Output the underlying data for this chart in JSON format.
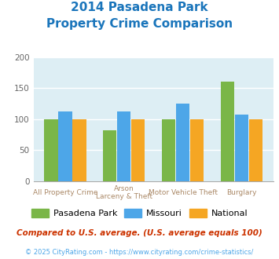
{
  "title_line1": "2014 Pasadena Park",
  "title_line2": "Property Crime Comparison",
  "title_color": "#1a75bb",
  "cat_labels_line1": [
    "All Property Crime",
    "Arson",
    "Motor Vehicle Theft",
    "Burglary"
  ],
  "cat_labels_line2": [
    "",
    "Larceny & Theft",
    "",
    ""
  ],
  "pasadena_values": [
    100,
    82,
    100,
    160
  ],
  "missouri_values": [
    112,
    112,
    125,
    107
  ],
  "national_values": [
    100,
    100,
    100,
    100
  ],
  "pasadena_color": "#7ab648",
  "missouri_color": "#4da6e8",
  "national_color": "#f5a623",
  "ylim": [
    0,
    200
  ],
  "yticks": [
    0,
    50,
    100,
    150,
    200
  ],
  "plot_bg_color": "#ddeef4",
  "legend_labels": [
    "Pasadena Park",
    "Missouri",
    "National"
  ],
  "footnote1": "Compared to U.S. average. (U.S. average equals 100)",
  "footnote2": "© 2025 CityRating.com - https://www.cityrating.com/crime-statistics/",
  "footnote1_color": "#cc3300",
  "footnote2_color": "#4da6e8",
  "xlabel_color": "#aa8866"
}
